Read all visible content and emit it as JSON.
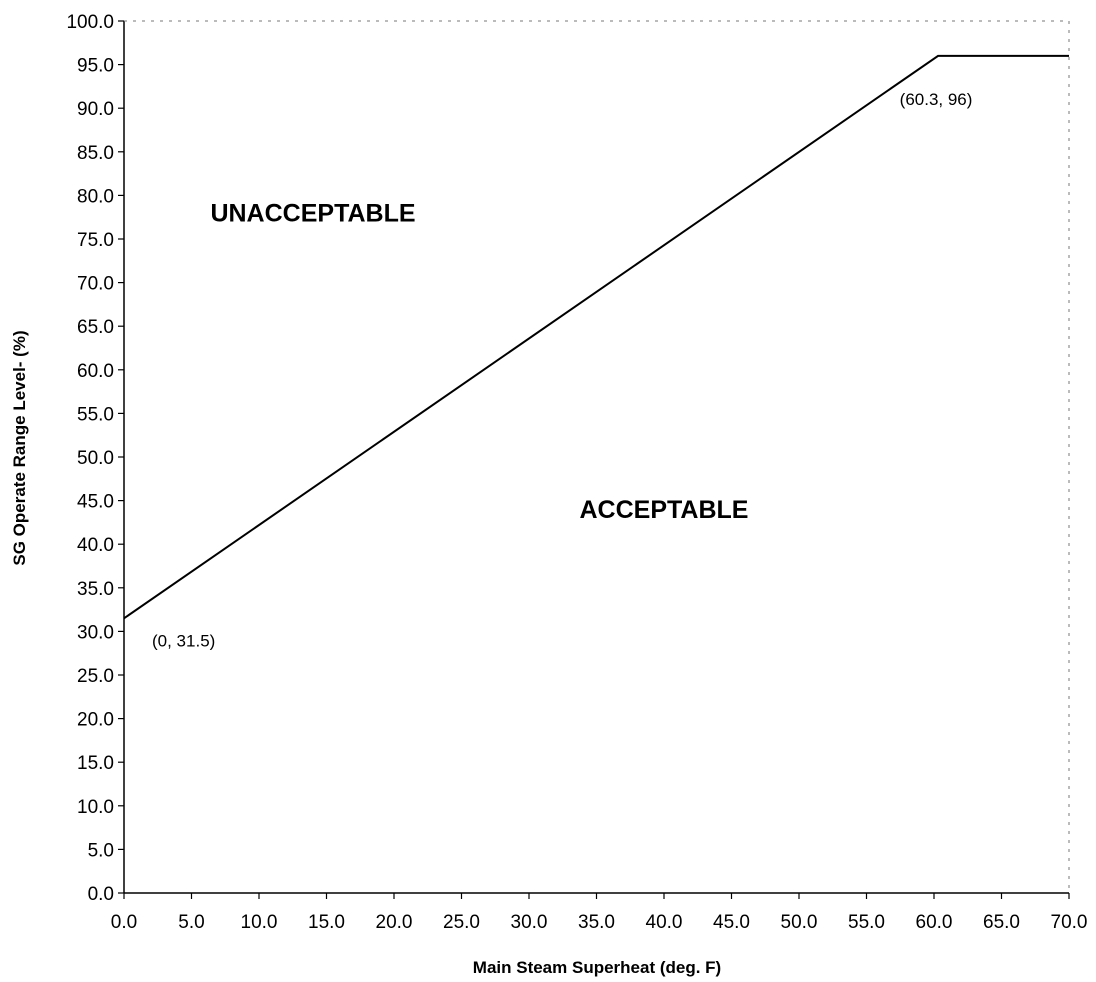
{
  "chart_data": {
    "type": "line",
    "xlabel": "Main Steam Superheat  (deg. F)",
    "ylabel": "SG Operate Range Level- (%)",
    "xlim": [
      0,
      70
    ],
    "ylim": [
      0,
      100
    ],
    "x_ticks": [
      "0.0",
      "5.0",
      "10.0",
      "15.0",
      "20.0",
      "25.0",
      "30.0",
      "35.0",
      "40.0",
      "45.0",
      "50.0",
      "55.0",
      "60.0",
      "65.0",
      "70.0"
    ],
    "y_ticks": [
      "0.0",
      "5.0",
      "10.0",
      "15.0",
      "20.0",
      "25.0",
      "30.0",
      "35.0",
      "40.0",
      "45.0",
      "50.0",
      "55.0",
      "60.0",
      "65.0",
      "70.0",
      "75.0",
      "80.0",
      "85.0",
      "90.0",
      "95.0",
      "100.0"
    ],
    "grid": false,
    "series": [
      {
        "x": [
          0,
          60.3,
          70
        ],
        "y": [
          31.5,
          96,
          96
        ],
        "color": "#000000"
      }
    ],
    "annotations": [
      {
        "text": "(0, 31.5)",
        "x": 0,
        "y": 31.5
      },
      {
        "text": "(60.3, 96)",
        "x": 60.3,
        "y": 96
      }
    ],
    "region_labels": [
      {
        "text": "UNACCEPTABLE",
        "x": 14,
        "y": 77
      },
      {
        "text": "ACCEPTABLE",
        "x": 40,
        "y": 43
      }
    ]
  }
}
